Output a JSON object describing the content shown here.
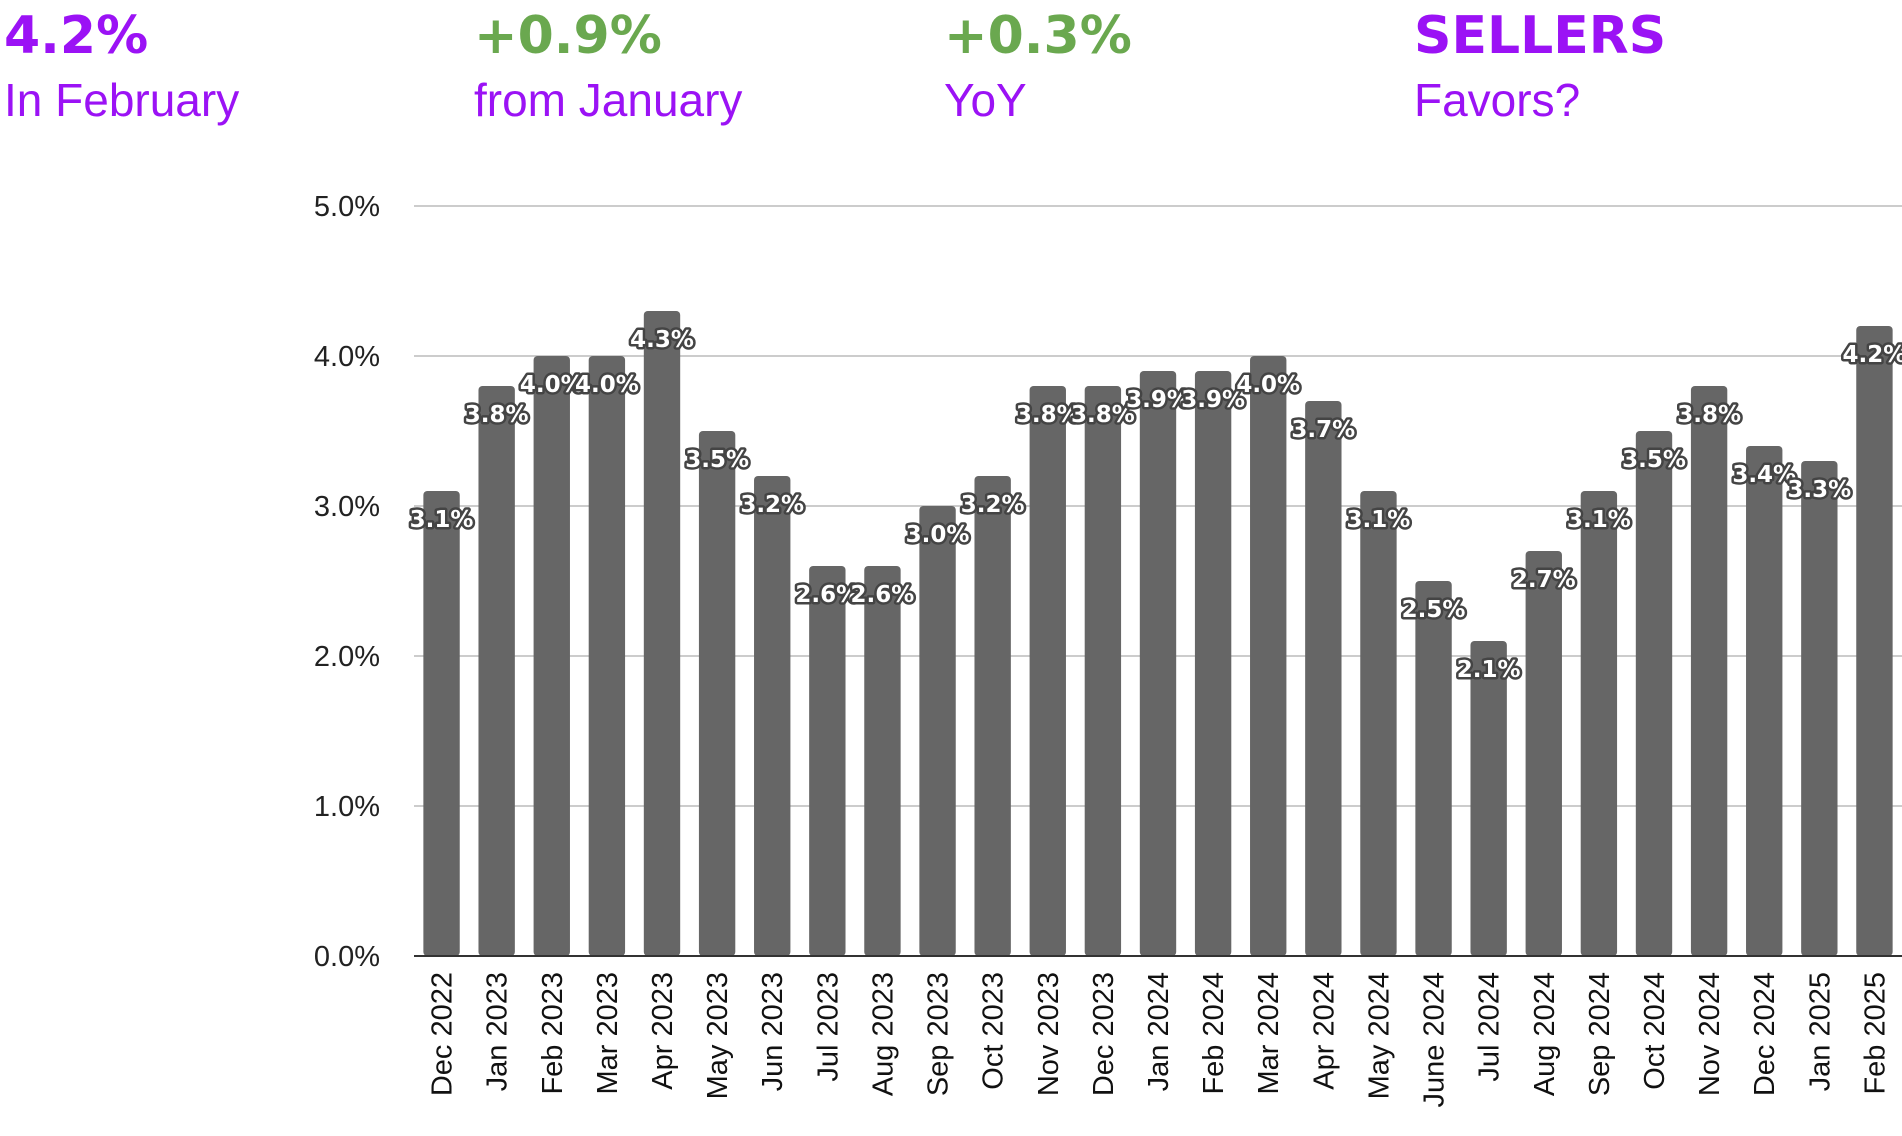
{
  "header": {
    "stats": [
      {
        "value": "4.2%",
        "label": "In February",
        "value_color": "#9b12f5",
        "label_color": "#9b12f5"
      },
      {
        "value": "+0.9%",
        "label": "from January",
        "value_color": "#6aa84f",
        "label_color": "#9b12f5"
      },
      {
        "value": "+0.3%",
        "label": "YoY",
        "value_color": "#6aa84f",
        "label_color": "#9b12f5"
      },
      {
        "value": "SELLERS",
        "label": "Favors?",
        "value_color": "#9b12f5",
        "label_color": "#9b12f5"
      }
    ]
  },
  "chart_data": {
    "type": "bar",
    "title": "",
    "xlabel": "",
    "ylabel": "",
    "ylim": [
      0,
      5
    ],
    "yticks": [
      "0.0%",
      "1.0%",
      "2.0%",
      "3.0%",
      "4.0%",
      "5.0%"
    ],
    "grid": true,
    "bar_color": "#666666",
    "categories": [
      "Dec 2022",
      "Jan 2023",
      "Feb 2023",
      "Mar 2023",
      "Apr 2023",
      "May 2023",
      "Jun 2023",
      "Jul 2023",
      "Aug 2023",
      "Sep 2023",
      "Oct 2023",
      "Nov 2023",
      "Dec 2023",
      "Jan 2024",
      "Feb 2024",
      "Mar 2024",
      "Apr 2024",
      "May 2024",
      "June 2024",
      "Jul 2024",
      "Aug 2024",
      "Sep 2024",
      "Oct 2024",
      "Nov 2024",
      "Dec 2024",
      "Jan 2025",
      "Feb 2025"
    ],
    "values": [
      3.1,
      3.8,
      4.0,
      4.0,
      4.3,
      3.5,
      3.2,
      2.6,
      2.6,
      3.0,
      3.2,
      3.8,
      3.8,
      3.9,
      3.9,
      4.0,
      3.7,
      3.1,
      2.5,
      2.1,
      2.7,
      3.1,
      3.5,
      3.8,
      3.4,
      3.3,
      4.2
    ],
    "data_labels": [
      "3.1%",
      "3.8%",
      "4.0%",
      "4.0%",
      "4.3%",
      "3.5%",
      "3.2%",
      "2.6%",
      "2.6%",
      "3.0%",
      "3.2%",
      "3.8%",
      "3.8%",
      "3.9%",
      "3.9%",
      "4.0%",
      "3.7%",
      "3.1%",
      "2.5%",
      "2.1%",
      "2.7%",
      "3.1%",
      "3.5%",
      "3.8%",
      "3.4%",
      "3.3%",
      "4.2%"
    ]
  }
}
